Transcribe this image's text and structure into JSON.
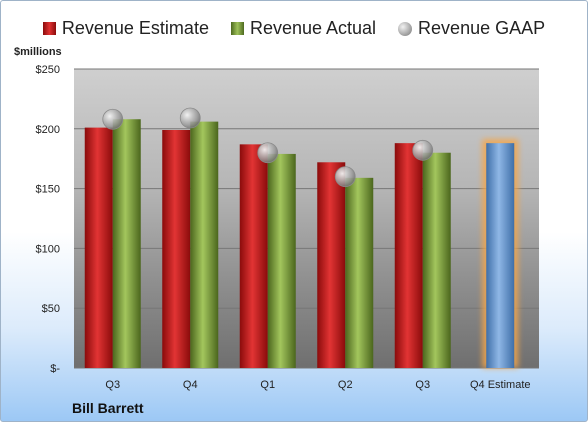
{
  "chart_data": {
    "type": "bar",
    "title": "",
    "ylabel": "$millions",
    "xlabel": "",
    "categories": [
      "Q3",
      "Q4",
      "Q1",
      "Q2",
      "Q3",
      "Q4 Estimate"
    ],
    "series": [
      {
        "name": "Revenue Estimate",
        "type": "bar",
        "values": [
          201,
          199,
          187,
          172,
          188,
          null
        ],
        "color": "#c42020"
      },
      {
        "name": "Revenue Actual",
        "type": "bar",
        "values": [
          208,
          206,
          179,
          159,
          180,
          188
        ],
        "color": "#7e9e3a"
      },
      {
        "name": "Revenue GAAP",
        "type": "marker",
        "values": [
          208,
          209,
          180,
          160,
          182,
          null
        ],
        "color": "#b0b0b0"
      }
    ],
    "highlight": {
      "category": "Q4 Estimate",
      "value": 188,
      "color": "#6f9fd8",
      "glow": "#f5a64a"
    },
    "ylim": [
      0,
      250
    ],
    "yticks": [
      {
        "value": 0,
        "label": "$-"
      },
      {
        "value": 50,
        "label": "$50"
      },
      {
        "value": 100,
        "label": "$100"
      },
      {
        "value": 150,
        "label": "$150"
      },
      {
        "value": 200,
        "label": "$200"
      },
      {
        "value": 250,
        "label": "$250"
      }
    ],
    "grid": true,
    "legend_position": "top"
  },
  "company": "Bill Barrett"
}
